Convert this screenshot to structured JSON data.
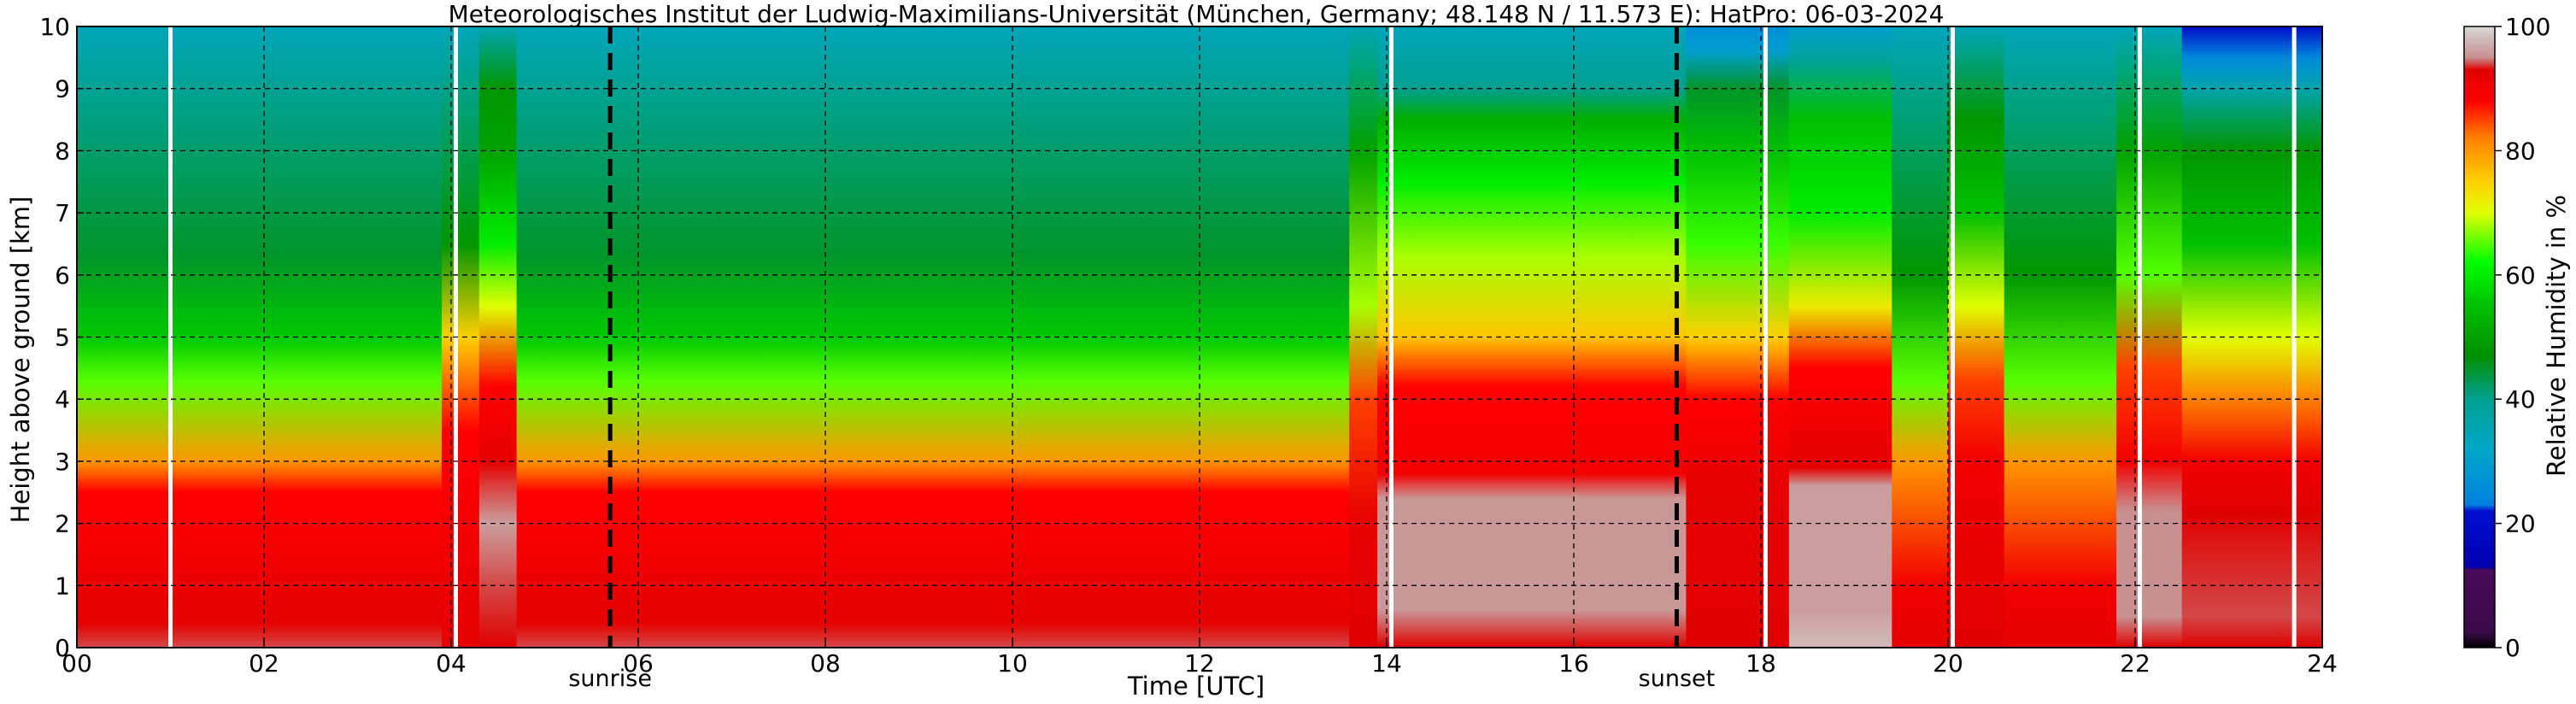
{
  "chart_data": {
    "type": "heatmap",
    "title": "Meteorologisches Institut der Ludwig-Maximilians-Universität (München, Germany; 48.148 N / 11.573 E):    HatPro: 06-03-2024",
    "xlabel": "Time [UTC]",
    "ylabel": "Height above ground [km]",
    "colorbar_label": "Relative Humidity in %",
    "xlim": [
      0,
      24
    ],
    "ylim": [
      0,
      10
    ],
    "x_ticks": [
      0,
      2,
      4,
      6,
      8,
      10,
      12,
      14,
      16,
      18,
      20,
      22,
      24
    ],
    "x_tick_labels": [
      "00",
      "02",
      "04",
      "06",
      "08",
      "10",
      "12",
      "14",
      "16",
      "18",
      "20",
      "22",
      "24"
    ],
    "y_ticks": [
      0,
      1,
      2,
      3,
      4,
      5,
      6,
      7,
      8,
      9,
      10
    ],
    "y_tick_labels": [
      "0",
      "1",
      "2",
      "3",
      "4",
      "5",
      "6",
      "7",
      "8",
      "9",
      "10"
    ],
    "colorbar_ticks": [
      0,
      20,
      40,
      60,
      80,
      100
    ],
    "colorbar_tick_labels": [
      "0",
      "20",
      "40",
      "60",
      "80",
      "100"
    ],
    "colorbar_stops": [
      {
        "value": 0,
        "color": "#000000"
      },
      {
        "value": 2.5,
        "color": "#3a0a4a"
      },
      {
        "value": 12.5,
        "color": "#4a0a5a"
      },
      {
        "value": 13,
        "color": "#0000b0"
      },
      {
        "value": 22,
        "color": "#0010d0"
      },
      {
        "value": 23,
        "color": "#0080e0"
      },
      {
        "value": 32,
        "color": "#00a8c8"
      },
      {
        "value": 40,
        "color": "#00a090"
      },
      {
        "value": 47,
        "color": "#009000"
      },
      {
        "value": 55,
        "color": "#00c000"
      },
      {
        "value": 62,
        "color": "#00ff00"
      },
      {
        "value": 70,
        "color": "#e0ff00"
      },
      {
        "value": 75,
        "color": "#ffd000"
      },
      {
        "value": 82,
        "color": "#ff8000"
      },
      {
        "value": 88,
        "color": "#ff0000"
      },
      {
        "value": 93,
        "color": "#e00000"
      },
      {
        "value": 95,
        "color": "#c89090"
      },
      {
        "value": 100,
        "color": "#d8d8d8"
      }
    ],
    "sunrise": {
      "x": 5.7,
      "label": "sunrise"
    },
    "sunset": {
      "x": 17.1,
      "label": "sunset"
    },
    "white_gaps_x": [
      1.0,
      4.05,
      14.05,
      18.05,
      20.05,
      22.05,
      23.7
    ],
    "grid": true,
    "columns": [
      {
        "x": [
          0,
          3.9
        ],
        "levels": [
          [
            0,
            94
          ],
          [
            0.4,
            92
          ],
          [
            2.5,
            88
          ],
          [
            3,
            80
          ],
          [
            4.3,
            65
          ],
          [
            5,
            56
          ],
          [
            6.3,
            45
          ],
          [
            10,
            34
          ]
        ]
      },
      {
        "x": [
          3.9,
          4.3
        ],
        "levels": [
          [
            0,
            92
          ],
          [
            3.5,
            88
          ],
          [
            5,
            75
          ],
          [
            6.5,
            48
          ],
          [
            10,
            34
          ]
        ]
      },
      {
        "x": [
          4.3,
          4.7
        ],
        "levels": [
          [
            0,
            93
          ],
          [
            1,
            94
          ],
          [
            2,
            96
          ],
          [
            3,
            92
          ],
          [
            4.2,
            88
          ],
          [
            5.5,
            70
          ],
          [
            6.5,
            60
          ],
          [
            8,
            50
          ],
          [
            9,
            48
          ],
          [
            10,
            35
          ]
        ]
      },
      {
        "x": [
          4.7,
          13.6
        ],
        "levels": [
          [
            0,
            94
          ],
          [
            0.4,
            92
          ],
          [
            2.5,
            88
          ],
          [
            3,
            80
          ],
          [
            4.3,
            65
          ],
          [
            5,
            56
          ],
          [
            6.3,
            45
          ],
          [
            10,
            34
          ]
        ]
      },
      {
        "x": [
          13.6,
          13.9
        ],
        "levels": [
          [
            0,
            93
          ],
          [
            2,
            92
          ],
          [
            4,
            85
          ],
          [
            5.5,
            68
          ],
          [
            8,
            50
          ],
          [
            10,
            35
          ]
        ]
      },
      {
        "x": [
          13.9,
          17.2
        ],
        "levels": [
          [
            0,
            93
          ],
          [
            0.6,
            95.5
          ],
          [
            2.4,
            95.5
          ],
          [
            2.8,
            90
          ],
          [
            4.2,
            88
          ],
          [
            5,
            76
          ],
          [
            6.3,
            68
          ],
          [
            7.5,
            60
          ],
          [
            8.5,
            52
          ],
          [
            9,
            40
          ],
          [
            10,
            34
          ]
        ]
      },
      {
        "x": [
          17.2,
          18.3
        ],
        "levels": [
          [
            0,
            93
          ],
          [
            2.5,
            92
          ],
          [
            4,
            88
          ],
          [
            5,
            75
          ],
          [
            6.5,
            64
          ],
          [
            8,
            55
          ],
          [
            9,
            45
          ],
          [
            9.6,
            30
          ],
          [
            10,
            26
          ]
        ]
      },
      {
        "x": [
          18.3,
          19.4
        ],
        "levels": [
          [
            0,
            98
          ],
          [
            0.6,
            96
          ],
          [
            2.6,
            96
          ],
          [
            2.9,
            92
          ],
          [
            4.5,
            88
          ],
          [
            5.5,
            72
          ],
          [
            7,
            60
          ],
          [
            8.5,
            55
          ],
          [
            9.5,
            38
          ],
          [
            10,
            30
          ]
        ]
      },
      {
        "x": [
          19.4,
          20.0
        ],
        "levels": [
          [
            0,
            92
          ],
          [
            1,
            90
          ],
          [
            3,
            80
          ],
          [
            4.3,
            65
          ],
          [
            6,
            48
          ],
          [
            10,
            34
          ]
        ]
      },
      {
        "x": [
          20.0,
          20.6
        ],
        "levels": [
          [
            0,
            93
          ],
          [
            3,
            90
          ],
          [
            4.3,
            85
          ],
          [
            5.5,
            70
          ],
          [
            7,
            55
          ],
          [
            8.5,
            48
          ],
          [
            10,
            34
          ]
        ]
      },
      {
        "x": [
          20.6,
          21.8
        ],
        "levels": [
          [
            0,
            92
          ],
          [
            1,
            90
          ],
          [
            3,
            80
          ],
          [
            4.3,
            65
          ],
          [
            6,
            48
          ],
          [
            10,
            34
          ]
        ]
      },
      {
        "x": [
          21.8,
          22.5
        ],
        "levels": [
          [
            0,
            93
          ],
          [
            0.5,
            95
          ],
          [
            2.2,
            95
          ],
          [
            3,
            90
          ],
          [
            4.5,
            85
          ],
          [
            6,
            65
          ],
          [
            8,
            50
          ],
          [
            10,
            34
          ]
        ]
      },
      {
        "x": [
          22.5,
          24
        ],
        "levels": [
          [
            0,
            93
          ],
          [
            0.5,
            94
          ],
          [
            2.2,
            93
          ],
          [
            3,
            90
          ],
          [
            4,
            82
          ],
          [
            5,
            70
          ],
          [
            6.5,
            55
          ],
          [
            8,
            48
          ],
          [
            9,
            36
          ],
          [
            9.5,
            25
          ],
          [
            10,
            20
          ]
        ]
      }
    ]
  }
}
